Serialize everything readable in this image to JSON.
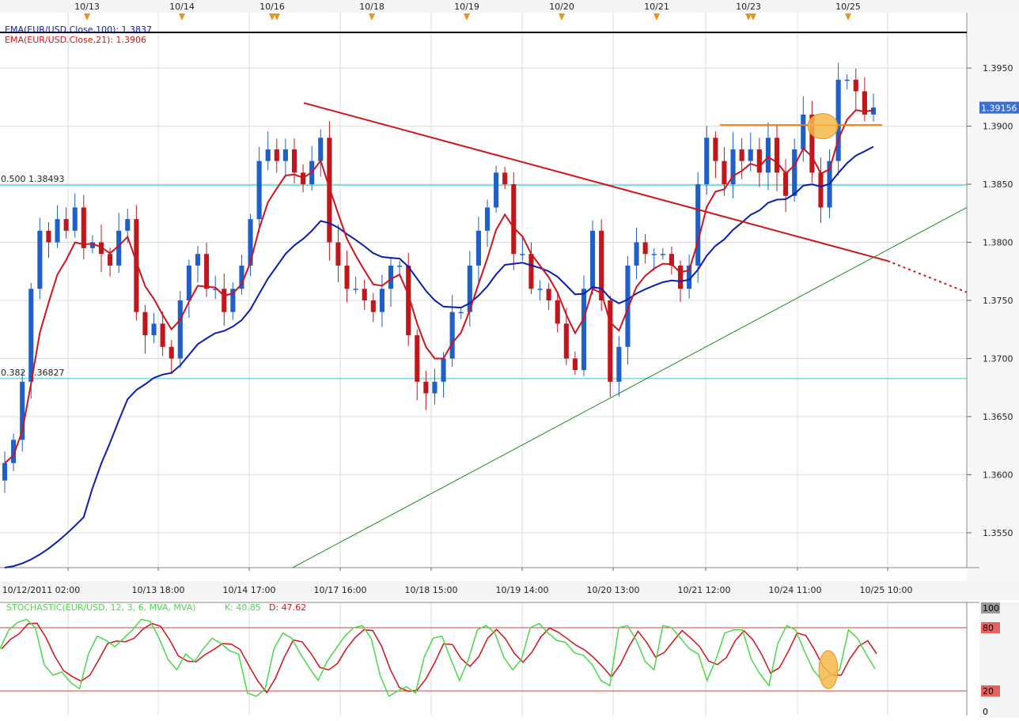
{
  "colors": {
    "up_candle": "#1f5fc8",
    "down_candle": "#c0171d",
    "ema100": "#0a1fae",
    "ema21": "#d0141c",
    "fib_line": "#35c6c6",
    "trend_down": "#d0141c",
    "trend_up": "#1d8a1d",
    "resistance": "#f08018",
    "highlight_circle": "#f5b84a",
    "stoch_k": "#4ad84a",
    "stoch_d": "#d0141c",
    "stoch_level": "#d04040",
    "grid": "#dcdcdc",
    "price_badge": "#3a6fd0",
    "event_marker": "#e8961e"
  },
  "top_dates": [
    "10/13",
    "10/14",
    "10/16",
    "10/18",
    "10/19",
    "10/20",
    "10/21",
    "10/23",
    "10/25"
  ],
  "legend": {
    "ema100": "EMA(EUR/USD.Close,100): 1.3837",
    "ema21": "EMA(EUR/USD.Close,21): 1.3906"
  },
  "fib_labels": {
    "f500": "0.500  1.38493",
    "f382": "0.382  1.36827"
  },
  "price_badge": "1.39156",
  "stochastic": {
    "label": "STOCHASTIC(EUR/USD, 12, 3, 6, MVA, MVA)",
    "k_label": "K: 40.85",
    "d_label": "D: 47.62",
    "scale_labels": [
      "100",
      "80",
      "20",
      "0"
    ]
  },
  "chart_data": {
    "type": "candlestick",
    "symbol": "EUR/USD",
    "x_tick_labels": [
      "10/12/2011 02:00",
      "10/13 18:00",
      "10/14 17:00",
      "10/17 16:00",
      "10/18 15:00",
      "10/19 14:00",
      "10/20 13:00",
      "10/21 12:00",
      "10/24 11:00",
      "10/25 10:00"
    ],
    "y_ticks": [
      1.355,
      1.36,
      1.365,
      1.37,
      1.375,
      1.38,
      1.385,
      1.39,
      1.395
    ],
    "y_tick_labels": [
      "1.3550",
      "1.3600",
      "1.3650",
      "1.3700",
      "1.3750",
      "1.3800",
      "1.3850",
      "1.3900",
      "1.3950"
    ],
    "ylim": [
      1.352,
      1.398
    ],
    "fibonacci_levels": [
      {
        "ratio": 0.5,
        "price": 1.38493
      },
      {
        "ratio": 0.382,
        "price": 1.36827
      }
    ],
    "last_price": 1.39156,
    "ema100_last": 1.3837,
    "ema21_last": 1.3906,
    "price_path": [
      1.361,
      1.363,
      1.368,
      1.376,
      1.381,
      1.38,
      1.382,
      1.381,
      1.383,
      1.3795,
      1.38,
      1.379,
      1.378,
      1.381,
      1.382,
      1.374,
      1.372,
      1.373,
      1.371,
      1.37,
      1.375,
      1.378,
      1.379,
      1.376,
      1.376,
      1.374,
      1.376,
      1.378,
      1.382,
      1.387,
      1.388,
      1.387,
      1.388,
      1.386,
      1.385,
      1.387,
      1.389,
      1.38,
      1.378,
      1.376,
      1.376,
      1.375,
      1.374,
      1.376,
      1.378,
      1.378,
      1.372,
      1.368,
      1.367,
      1.368,
      1.37,
      1.374,
      1.374,
      1.378,
      1.381,
      1.383,
      1.386,
      1.385,
      1.379,
      1.379,
      1.376,
      1.376,
      1.375,
      1.373,
      1.37,
      1.369,
      1.376,
      1.381,
      1.375,
      1.368,
      1.371,
      1.378,
      1.38,
      1.379,
      1.379,
      1.379,
      1.378,
      1.376,
      1.378,
      1.385,
      1.389,
      1.387,
      1.385,
      1.388,
      1.387,
      1.388,
      1.386,
      1.389,
      1.386,
      1.384,
      1.388,
      1.391,
      1.386,
      1.383,
      1.387,
      1.394,
      1.394,
      1.393,
      1.391,
      1.3916
    ],
    "annotations": [
      {
        "type": "trendline",
        "name": "descending-resistance",
        "from": {
          "date": "10/17",
          "price": 1.392
        },
        "to": {
          "date": "10/25 10:00",
          "price": 1.376
        }
      },
      {
        "type": "trendline",
        "name": "ascending-support",
        "from": {
          "date": "10/17",
          "price": 1.352
        },
        "to": {
          "date": "10/25 10:00",
          "price": 1.383
        }
      },
      {
        "type": "horizontal",
        "name": "resistance-1.3901",
        "price": 1.3901
      },
      {
        "type": "highlight",
        "name": "price-breakout",
        "price": 1.39
      }
    ],
    "stochastic": {
      "k": 40.85,
      "d": 47.62,
      "upper": 80,
      "lower": 20,
      "ylim": [
        0,
        100
      ],
      "k_path": [
        60,
        78,
        85,
        88,
        80,
        45,
        35,
        38,
        28,
        22,
        55,
        72,
        68,
        62,
        70,
        78,
        88,
        86,
        70,
        50,
        40,
        55,
        48,
        60,
        70,
        65,
        58,
        55,
        18,
        15,
        22,
        60,
        75,
        70,
        55,
        42,
        30,
        48,
        60,
        72,
        80,
        82,
        70,
        35,
        15,
        20,
        24,
        18,
        52,
        70,
        72,
        50,
        30,
        50,
        78,
        82,
        75,
        52,
        40,
        50,
        80,
        84,
        75,
        68,
        66,
        56,
        54,
        45,
        30,
        25,
        80,
        82,
        68,
        48,
        40,
        82,
        80,
        70,
        60,
        55,
        30,
        50,
        75,
        78,
        78,
        50,
        36,
        25,
        65,
        82,
        78,
        58,
        40,
        30,
        35,
        40,
        78,
        70,
        55,
        41
      ]
    }
  }
}
